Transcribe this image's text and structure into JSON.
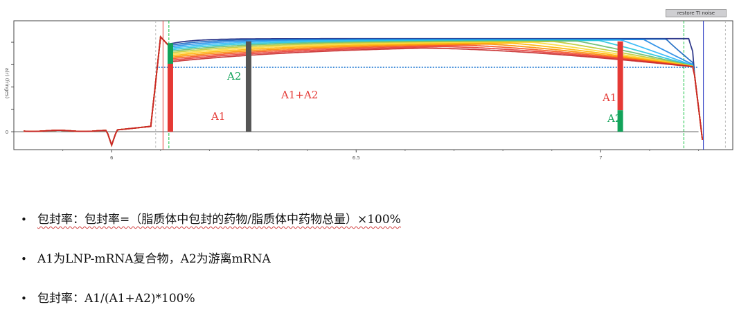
{
  "toolbar": {
    "restore_label": "restore TI noise"
  },
  "chart_data": {
    "type": "line",
    "x_ticks": [
      "6",
      "6.5",
      "7"
    ],
    "xlim": [
      5.8,
      7.27
    ],
    "ylim": [
      -0.1,
      0.62
    ],
    "y_tick_values": [
      0,
      0.125,
      0.25,
      0.375,
      0.5,
      0.625
    ],
    "y_label": "a(r) (fringes)",
    "grid": false,
    "series_colors": [
      "#1a237e",
      "#1565c0",
      "#1e88e5",
      "#29b6f6",
      "#26c6da",
      "#66bb6a",
      "#c0ca33",
      "#fdd835",
      "#ffb300",
      "#fb8c00",
      "#f4511e",
      "#e53935",
      "#c62828"
    ],
    "boundary_plateau": 0.36,
    "plateau_level": 0.52,
    "baseline_level": 0.0,
    "meniscus_x": 6.11,
    "bottom_x": 7.21,
    "annotations": {
      "left_a1": "A1",
      "left_a2": "A2",
      "sum": "A1+A2",
      "right_a1": "A1",
      "right_a2": "A2"
    },
    "bar_colors": {
      "a1": "#e53935",
      "a2": "#12a35a",
      "sum": "#555555"
    }
  },
  "bullets": [
    {
      "text": "包封率：包封率=（脂质体中包封的药物/脂质体中药物总量）×100%"
    },
    {
      "text": "A1为LNP-mRNA复合物，A2为游离mRNA"
    },
    {
      "text": "包封率：A1/(A1+A2)*100%"
    }
  ]
}
